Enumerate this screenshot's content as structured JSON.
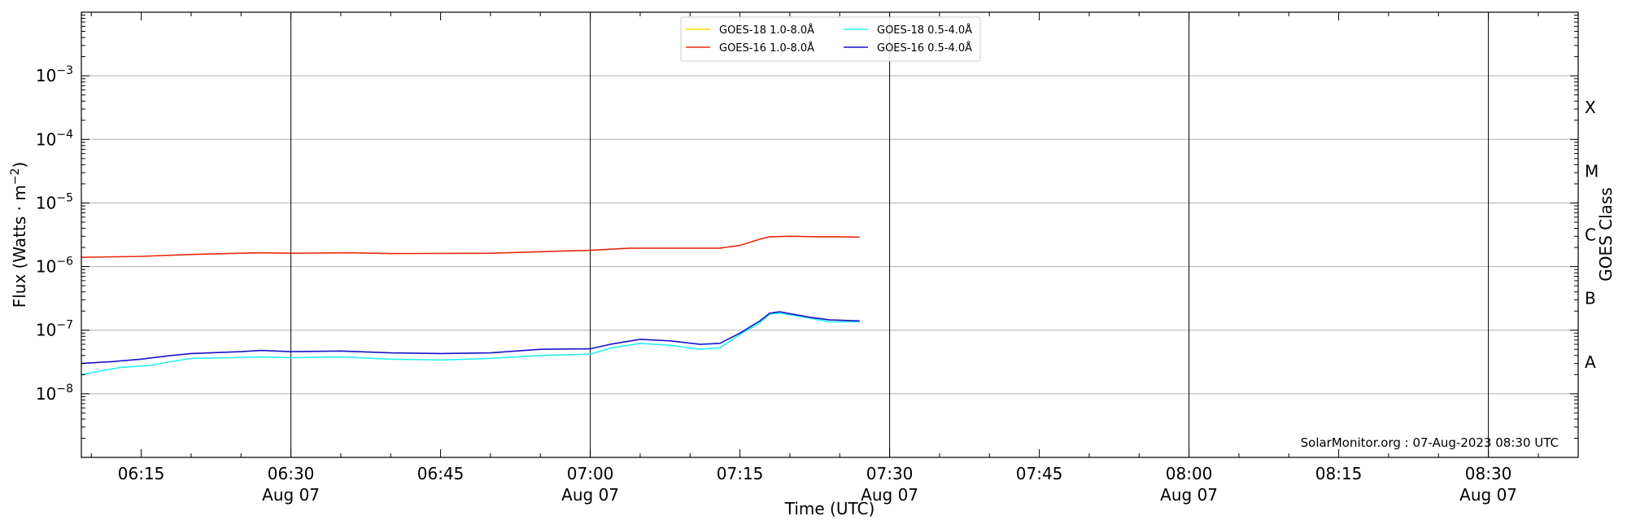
{
  "chart_data": {
    "type": "line",
    "xlabel": "Time (UTC)",
    "ylabel_main": "Flux (Watts · m",
    "ylabel_exp": "−2",
    "ylabel_close": ")",
    "ylabel_right": "GOES Class",
    "x_range": [
      "06:09",
      "08:39"
    ],
    "ylim": [
      1e-09,
      0.01
    ],
    "y_scale": "log",
    "grid": "horizontal",
    "legend_position": "top-center",
    "x_ticks": [
      {
        "time": "06:15",
        "label": "06:15",
        "date": ""
      },
      {
        "time": "06:30",
        "label": "06:30",
        "date": "Aug 07"
      },
      {
        "time": "06:45",
        "label": "06:45",
        "date": ""
      },
      {
        "time": "07:00",
        "label": "07:00",
        "date": "Aug 07"
      },
      {
        "time": "07:15",
        "label": "07:15",
        "date": ""
      },
      {
        "time": "07:30",
        "label": "07:30",
        "date": "Aug 07"
      },
      {
        "time": "07:45",
        "label": "07:45",
        "date": ""
      },
      {
        "time": "08:00",
        "label": "08:00",
        "date": "Aug 07"
      },
      {
        "time": "08:15",
        "label": "08:15",
        "date": ""
      },
      {
        "time": "08:30",
        "label": "08:30",
        "date": "Aug 07"
      }
    ],
    "day_lines": [
      "06:30",
      "07:00",
      "07:30",
      "08:00",
      "08:30"
    ],
    "y_ticks": [
      {
        "value": 1e-08,
        "base": "10",
        "exp": "−8"
      },
      {
        "value": 1e-07,
        "base": "10",
        "exp": "−7"
      },
      {
        "value": 1e-06,
        "base": "10",
        "exp": "−6"
      },
      {
        "value": 1e-05,
        "base": "10",
        "exp": "−5"
      },
      {
        "value": 0.0001,
        "base": "10",
        "exp": "−4"
      },
      {
        "value": 0.001,
        "base": "10",
        "exp": "−3"
      }
    ],
    "goes_classes": [
      {
        "label": "A",
        "value": 3.16e-08
      },
      {
        "label": "B",
        "value": 3.16e-07
      },
      {
        "label": "C",
        "value": 3.16e-06
      },
      {
        "label": "M",
        "value": 3.16e-05
      },
      {
        "label": "X",
        "value": 0.000316
      }
    ],
    "series": [
      {
        "name": "GOES-18 1.0-8.0Å",
        "color": "#ffd700",
        "data": []
      },
      {
        "name": "GOES-16 1.0-8.0Å",
        "color": "#e8280b",
        "data": [
          [
            "06:09",
            1.4e-06
          ],
          [
            "06:15",
            1.45e-06
          ],
          [
            "06:20",
            1.55e-06
          ],
          [
            "06:27",
            1.65e-06
          ],
          [
            "06:30",
            1.62e-06
          ],
          [
            "06:36",
            1.65e-06
          ],
          [
            "06:40",
            1.6e-06
          ],
          [
            "06:50",
            1.62e-06
          ],
          [
            "06:57",
            1.75e-06
          ],
          [
            "07:00",
            1.8e-06
          ],
          [
            "07:04",
            1.95e-06
          ],
          [
            "07:10",
            1.95e-06
          ],
          [
            "07:13",
            1.95e-06
          ],
          [
            "07:15",
            2.15e-06
          ],
          [
            "07:17",
            2.7e-06
          ],
          [
            "07:18",
            2.95e-06
          ],
          [
            "07:20",
            3e-06
          ],
          [
            "07:23",
            2.95e-06
          ],
          [
            "07:25",
            2.95e-06
          ],
          [
            "07:27",
            2.9e-06
          ]
        ]
      },
      {
        "name": "GOES-18 0.5-4.0Å",
        "color": "#28f0f0",
        "data": [
          [
            "06:09",
            2e-08
          ],
          [
            "06:11",
            2.3e-08
          ],
          [
            "06:13",
            2.6e-08
          ],
          [
            "06:16",
            2.8e-08
          ],
          [
            "06:18",
            3.2e-08
          ],
          [
            "06:20",
            3.6e-08
          ],
          [
            "06:24",
            3.7e-08
          ],
          [
            "06:27",
            3.8e-08
          ],
          [
            "06:30",
            3.7e-08
          ],
          [
            "06:35",
            3.8e-08
          ],
          [
            "06:40",
            3.5e-08
          ],
          [
            "06:45",
            3.4e-08
          ],
          [
            "06:50",
            3.6e-08
          ],
          [
            "06:55",
            4e-08
          ],
          [
            "07:00",
            4.2e-08
          ],
          [
            "07:02",
            5.2e-08
          ],
          [
            "07:05",
            6.2e-08
          ],
          [
            "07:08",
            5.8e-08
          ],
          [
            "07:11",
            5e-08
          ],
          [
            "07:13",
            5.3e-08
          ],
          [
            "07:15",
            8.5e-08
          ],
          [
            "07:17",
            1.3e-07
          ],
          [
            "07:18",
            1.8e-07
          ],
          [
            "07:19",
            1.85e-07
          ],
          [
            "07:22",
            1.55e-07
          ],
          [
            "07:24",
            1.35e-07
          ],
          [
            "07:27",
            1.35e-07
          ]
        ]
      },
      {
        "name": "GOES-16 0.5-4.0Å",
        "color": "#1a12c8",
        "data": [
          [
            "06:09",
            3e-08
          ],
          [
            "06:12",
            3.2e-08
          ],
          [
            "06:15",
            3.5e-08
          ],
          [
            "06:18",
            4e-08
          ],
          [
            "06:20",
            4.3e-08
          ],
          [
            "06:25",
            4.6e-08
          ],
          [
            "06:27",
            4.8e-08
          ],
          [
            "06:30",
            4.6e-08
          ],
          [
            "06:35",
            4.7e-08
          ],
          [
            "06:40",
            4.4e-08
          ],
          [
            "06:45",
            4.3e-08
          ],
          [
            "06:50",
            4.4e-08
          ],
          [
            "06:55",
            5e-08
          ],
          [
            "07:00",
            5.1e-08
          ],
          [
            "07:02",
            6e-08
          ],
          [
            "07:05",
            7.2e-08
          ],
          [
            "07:08",
            6.8e-08
          ],
          [
            "07:11",
            6e-08
          ],
          [
            "07:13",
            6.2e-08
          ],
          [
            "07:15",
            9e-08
          ],
          [
            "07:17",
            1.4e-07
          ],
          [
            "07:18",
            1.85e-07
          ],
          [
            "07:19",
            1.95e-07
          ],
          [
            "07:22",
            1.6e-07
          ],
          [
            "07:24",
            1.45e-07
          ],
          [
            "07:27",
            1.4e-07
          ]
        ]
      }
    ],
    "credit": "SolarMonitor.org : 07-Aug-2023 08:30 UTC"
  }
}
